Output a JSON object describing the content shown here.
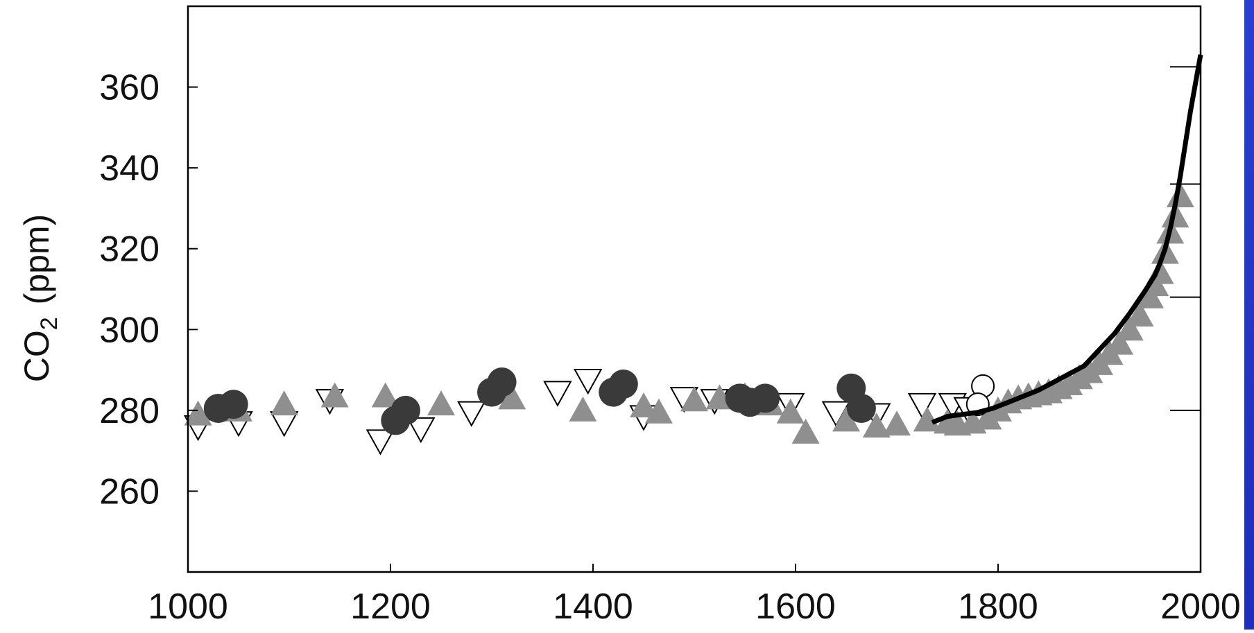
{
  "chart_data": {
    "type": "scatter",
    "title": "",
    "xlabel": "",
    "ylabel": {
      "main": "CO",
      "sub": "2",
      "unit": "(ppm)"
    },
    "xlim": [
      1000,
      2000
    ],
    "ylim": [
      240,
      380
    ],
    "xticks": [
      1000,
      1200,
      1400,
      1600,
      1800,
      2000
    ],
    "yticks": [
      260,
      280,
      300,
      320,
      340,
      360
    ],
    "right_ticks": [
      280,
      308,
      336,
      365
    ],
    "grid": false,
    "colors": {
      "filled_circle": "#3a3a3a",
      "gray_triangle": "#8f8f8f",
      "open_marker": "#ffffff",
      "line": "#000000",
      "right_strip": "#2238c8"
    },
    "series": [
      {
        "marker": "filled-circle",
        "points": [
          [
            1030,
            280.5
          ],
          [
            1045,
            281.5
          ],
          [
            1205,
            277.5
          ],
          [
            1215,
            280
          ],
          [
            1300,
            284.5
          ],
          [
            1310,
            287
          ],
          [
            1420,
            284.5
          ],
          [
            1430,
            286.5
          ],
          [
            1545,
            283
          ],
          [
            1555,
            282
          ],
          [
            1570,
            283
          ],
          [
            1655,
            285.5
          ],
          [
            1665,
            280.5
          ]
        ]
      },
      {
        "marker": "gray-triangle",
        "points": [
          [
            1010,
            279
          ],
          [
            1050,
            280
          ],
          [
            1095,
            281.5
          ],
          [
            1145,
            283.5
          ],
          [
            1195,
            283.5
          ],
          [
            1250,
            281.5
          ],
          [
            1320,
            283
          ],
          [
            1390,
            280
          ],
          [
            1450,
            281
          ],
          [
            1465,
            279.5
          ],
          [
            1500,
            282.5
          ],
          [
            1525,
            283
          ],
          [
            1550,
            283.5
          ],
          [
            1575,
            281.5
          ],
          [
            1595,
            279.5
          ],
          [
            1610,
            274.5
          ],
          [
            1650,
            277.5
          ],
          [
            1680,
            276
          ],
          [
            1700,
            276.5
          ],
          [
            1730,
            277.5
          ],
          [
            1750,
            277
          ],
          [
            1760,
            276.5
          ],
          [
            1775,
            277
          ],
          [
            1790,
            278
          ],
          [
            1800,
            280
          ],
          [
            1810,
            282
          ],
          [
            1820,
            283
          ],
          [
            1830,
            283.5
          ],
          [
            1840,
            284
          ],
          [
            1850,
            284.5
          ],
          [
            1860,
            285.5
          ],
          [
            1870,
            286.5
          ],
          [
            1880,
            288
          ],
          [
            1890,
            289.5
          ],
          [
            1900,
            291.5
          ],
          [
            1910,
            294
          ],
          [
            1920,
            296.5
          ],
          [
            1930,
            300
          ],
          [
            1940,
            303.5
          ],
          [
            1950,
            308
          ],
          [
            1955,
            311
          ],
          [
            1960,
            314
          ],
          [
            1965,
            319
          ],
          [
            1970,
            324
          ],
          [
            1975,
            328
          ],
          [
            1980,
            333
          ]
        ]
      },
      {
        "marker": "open-triangle-down",
        "points": [
          [
            1010,
            276
          ],
          [
            1050,
            277
          ],
          [
            1095,
            277
          ],
          [
            1140,
            282.5
          ],
          [
            1190,
            272.5
          ],
          [
            1230,
            275.5
          ],
          [
            1280,
            279.5
          ],
          [
            1365,
            284.5
          ],
          [
            1395,
            287.5
          ],
          [
            1450,
            278.5
          ],
          [
            1490,
            283
          ],
          [
            1520,
            282.5
          ],
          [
            1595,
            281.5
          ],
          [
            1640,
            279.5
          ],
          [
            1680,
            279
          ],
          [
            1725,
            281.5
          ],
          [
            1755,
            281.5
          ],
          [
            1770,
            280.5
          ]
        ]
      },
      {
        "marker": "open-circle",
        "points": [
          [
            1785,
            286
          ],
          [
            1780,
            281.5
          ]
        ]
      },
      {
        "marker": "line",
        "points": [
          [
            1735,
            277
          ],
          [
            1750,
            278.5
          ],
          [
            1765,
            279
          ],
          [
            1780,
            279.5
          ],
          [
            1795,
            280.5
          ],
          [
            1810,
            282
          ],
          [
            1825,
            283.5
          ],
          [
            1840,
            285
          ],
          [
            1855,
            287
          ],
          [
            1870,
            289
          ],
          [
            1885,
            291
          ],
          [
            1900,
            295
          ],
          [
            1915,
            299
          ],
          [
            1930,
            304
          ],
          [
            1945,
            309.5
          ],
          [
            1955,
            313.5
          ],
          [
            1960,
            316.5
          ],
          [
            1965,
            320
          ],
          [
            1970,
            325
          ],
          [
            1975,
            331
          ],
          [
            1980,
            338
          ],
          [
            1985,
            346
          ],
          [
            1990,
            354
          ],
          [
            1995,
            361
          ],
          [
            2000,
            368
          ]
        ]
      }
    ]
  }
}
